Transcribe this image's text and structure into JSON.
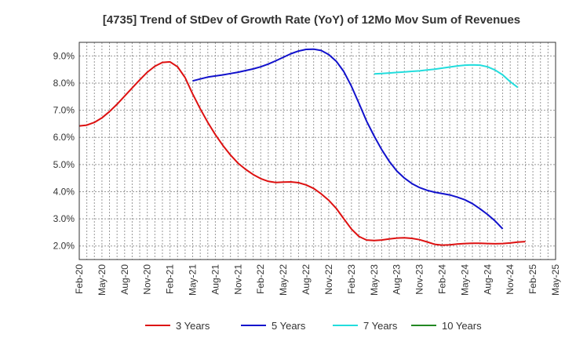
{
  "chart_data": {
    "type": "line",
    "title": "[4735]  Trend of StDev of Growth Rate (YoY) of 12Mo Mov Sum of Revenues",
    "xlabel": "",
    "ylabel": "",
    "ylim": [
      1.5,
      9.5
    ],
    "yticks": [
      "2.0%",
      "3.0%",
      "4.0%",
      "5.0%",
      "6.0%",
      "7.0%",
      "8.0%",
      "9.0%"
    ],
    "ytick_values": [
      2,
      3,
      4,
      5,
      6,
      7,
      8,
      9
    ],
    "xlabels": [
      "Feb-20",
      "May-20",
      "Aug-20",
      "Nov-20",
      "Feb-21",
      "May-21",
      "Aug-21",
      "Nov-21",
      "Feb-22",
      "May-22",
      "Aug-22",
      "Nov-22",
      "Feb-23",
      "May-23",
      "Aug-23",
      "Nov-23",
      "Feb-24",
      "May-24",
      "Aug-24",
      "Nov-24",
      "Feb-25",
      "May-25"
    ],
    "x_months_start": "2020-02",
    "grid": true,
    "legend_position": "bottom",
    "series": [
      {
        "name": "3 Years",
        "color": "#dd1111",
        "start_index": 0,
        "values": [
          6.42,
          6.45,
          6.55,
          6.72,
          6.95,
          7.22,
          7.52,
          7.82,
          8.12,
          8.4,
          8.62,
          8.76,
          8.78,
          8.6,
          8.2,
          7.6,
          7.05,
          6.55,
          6.1,
          5.7,
          5.35,
          5.05,
          4.82,
          4.63,
          4.48,
          4.38,
          4.34,
          4.35,
          4.36,
          4.33,
          4.25,
          4.12,
          3.92,
          3.68,
          3.38,
          3.0,
          2.62,
          2.35,
          2.22,
          2.2,
          2.22,
          2.26,
          2.29,
          2.3,
          2.28,
          2.23,
          2.15,
          2.06,
          2.03,
          2.04,
          2.07,
          2.09,
          2.1,
          2.1,
          2.09,
          2.08,
          2.09,
          2.11,
          2.14,
          2.16
        ]
      },
      {
        "name": "5 Years",
        "color": "#1111cc",
        "start_index": 15,
        "values": [
          8.08,
          8.15,
          8.22,
          8.26,
          8.3,
          8.35,
          8.4,
          8.46,
          8.52,
          8.6,
          8.7,
          8.82,
          8.95,
          9.08,
          9.18,
          9.24,
          9.25,
          9.2,
          9.05,
          8.8,
          8.42,
          7.88,
          7.25,
          6.6,
          6.05,
          5.55,
          5.12,
          4.76,
          4.5,
          4.3,
          4.15,
          4.05,
          3.98,
          3.93,
          3.88,
          3.8,
          3.7,
          3.56,
          3.37,
          3.16,
          2.92,
          2.63
        ]
      },
      {
        "name": "7 Years",
        "color": "#22dddd",
        "start_index": 39,
        "values": [
          8.34,
          8.35,
          8.37,
          8.39,
          8.41,
          8.43,
          8.45,
          8.48,
          8.51,
          8.55,
          8.59,
          8.63,
          8.66,
          8.67,
          8.66,
          8.6,
          8.48,
          8.3,
          8.05,
          7.84
        ]
      },
      {
        "name": "10 Years",
        "color": "#228822",
        "start_index": 0,
        "values": []
      }
    ]
  }
}
